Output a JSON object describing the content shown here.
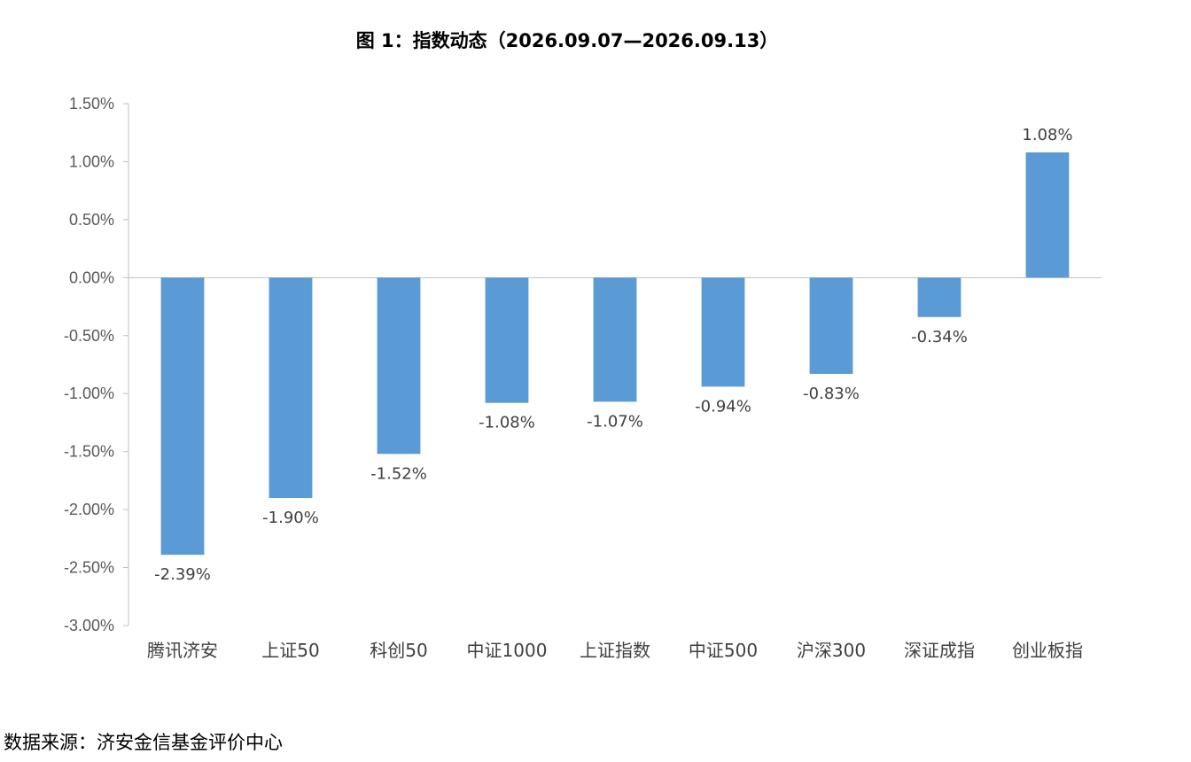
{
  "title": "图 1：指数动态（2026.09.07—2026.09.13）",
  "source": "数据来源：济安金信基金评价中心",
  "chart_data": {
    "type": "bar",
    "title": "图 1：指数动态（2026.09.07—2026.09.13）",
    "xlabel": "",
    "ylabel": "",
    "categories": [
      "腾讯济安",
      "上证50",
      "科创50",
      "中证1000",
      "上证指数",
      "中证500",
      "沪深300",
      "深证成指",
      "创业板指"
    ],
    "values": [
      -2.39,
      -1.9,
      -1.52,
      -1.08,
      -1.07,
      -0.94,
      -0.83,
      -0.34,
      1.08
    ],
    "data_labels": [
      "-2.39%",
      "-1.90%",
      "-1.52%",
      "-1.08%",
      "-1.07%",
      "-0.94%",
      "-0.83%",
      "-0.34%",
      "1.08%"
    ],
    "ylim": [
      -3.0,
      1.5
    ],
    "yticks": [
      1.5,
      1.0,
      0.5,
      0.0,
      -0.5,
      -1.0,
      -1.5,
      -2.0,
      -2.5,
      -3.0
    ],
    "ytick_labels": [
      "1.50%",
      "1.00%",
      "0.50%",
      "0.00%",
      "-0.50%",
      "-1.00%",
      "-1.50%",
      "-2.00%",
      "-2.50%",
      "-3.00%"
    ],
    "grid": false,
    "legend": "none",
    "bar_color": "#5B9BD5",
    "axis_color": "#BFBFBF"
  }
}
